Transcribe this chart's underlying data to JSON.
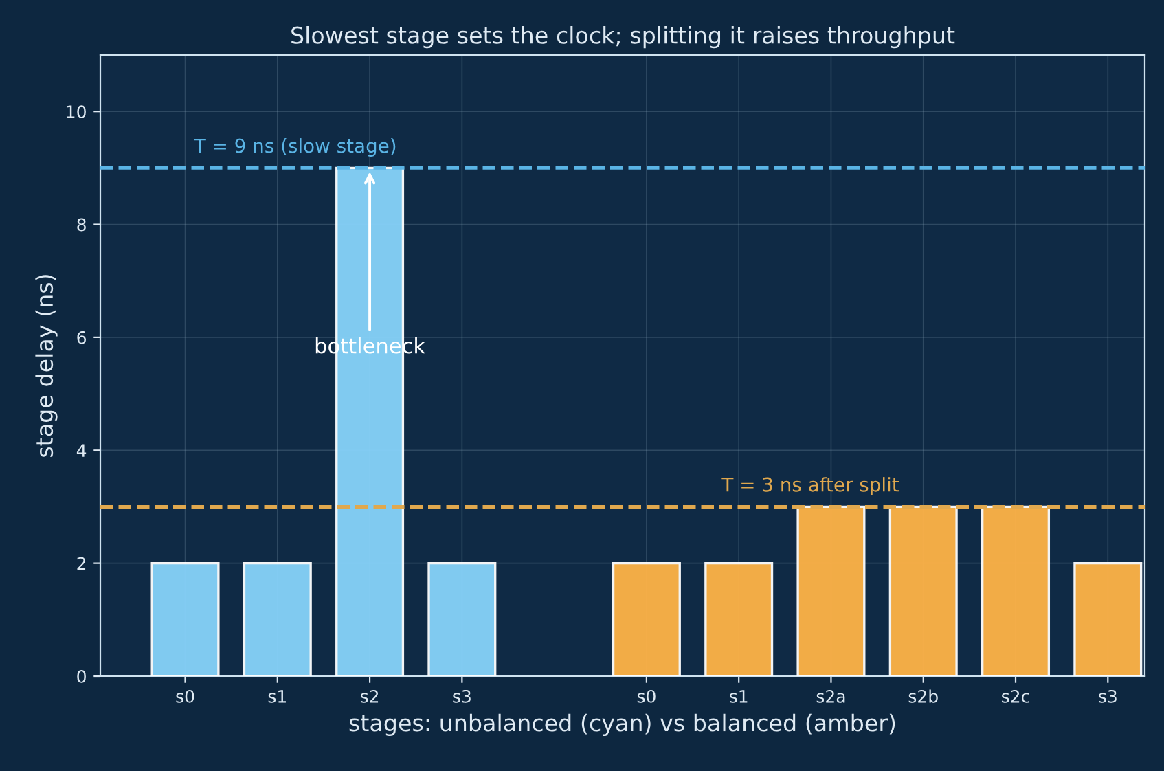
{
  "chart_data": {
    "type": "bar",
    "title": "Slowest stage sets the clock; splitting it raises throughput",
    "xlabel": "stages: unbalanced (cyan) vs balanced (amber)",
    "ylabel": "stage delay (ns)",
    "series": [
      {
        "color": "#87d3fa",
        "values": [
          2,
          2,
          9,
          2,
          null,
          null,
          null,
          null,
          null,
          null,
          null
        ]
      },
      {
        "color": "#ffb347",
        "values": [
          null,
          null,
          null,
          null,
          null,
          2,
          2,
          3,
          3,
          3,
          2
        ]
      }
    ],
    "categories": [
      "s0",
      "s1",
      "s2",
      "s3",
      null,
      "s0",
      "s1",
      "s2a",
      "s2b",
      "s2c",
      "s3"
    ],
    "ylim": [
      0,
      11
    ],
    "yticks": [
      0,
      2,
      4,
      6,
      8,
      10
    ],
    "ref_lines": [
      {
        "axis": "y",
        "value": 9,
        "label": "T = 9 ns (slow stage)",
        "color": "#5ab4e5",
        "line_style": "dashed"
      },
      {
        "axis": "y",
        "value": 3,
        "label": "T = 3 ns after split",
        "color": "#e0a84e",
        "line_style": "dashed"
      }
    ],
    "annotations": [
      {
        "text": "bottleneck",
        "x": "s2",
        "y": 9
      }
    ],
    "grid": true
  }
}
